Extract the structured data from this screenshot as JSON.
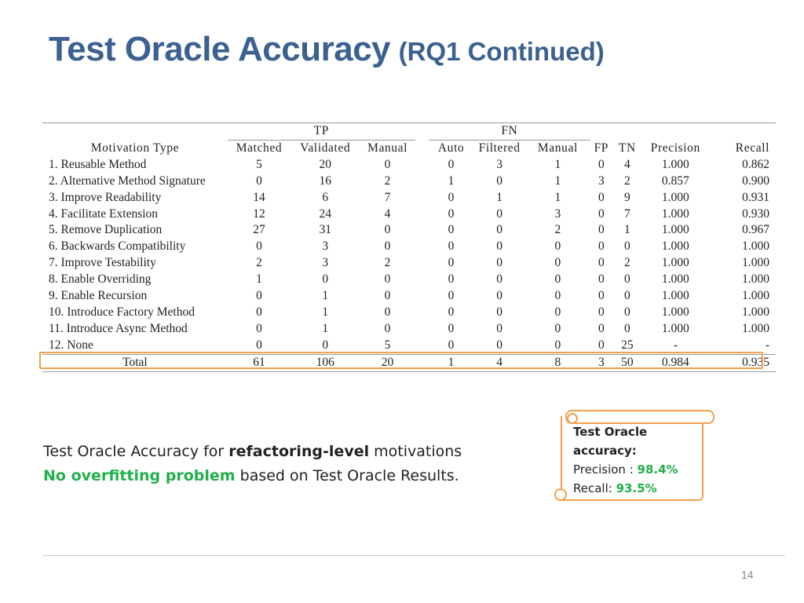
{
  "title": {
    "main": "Test Oracle Accuracy",
    "sub": "(RQ1 Continued)"
  },
  "table": {
    "group_tp": "TP",
    "group_fn": "FN",
    "headers": {
      "motivation": "Motivation Type",
      "matched": "Matched",
      "validated": "Validated",
      "manual_tp": "Manual",
      "auto": "Auto",
      "filtered": "Filtered",
      "manual_fn": "Manual",
      "fp": "FP",
      "tn": "TN",
      "precision": "Precision",
      "recall": "Recall"
    },
    "rows": [
      [
        "1. Reusable Method",
        "5",
        "20",
        "0",
        "0",
        "3",
        "1",
        "0",
        "4",
        "1.000",
        "0.862"
      ],
      [
        "2. Alternative Method Signature",
        "0",
        "16",
        "2",
        "1",
        "0",
        "1",
        "3",
        "2",
        "0.857",
        "0.900"
      ],
      [
        "3. Improve Readability",
        "14",
        "6",
        "7",
        "0",
        "1",
        "1",
        "0",
        "9",
        "1.000",
        "0.931"
      ],
      [
        "4. Facilitate Extension",
        "12",
        "24",
        "4",
        "0",
        "0",
        "3",
        "0",
        "7",
        "1.000",
        "0.930"
      ],
      [
        "5. Remove Duplication",
        "27",
        "31",
        "0",
        "0",
        "0",
        "2",
        "0",
        "1",
        "1.000",
        "0.967"
      ],
      [
        "6. Backwards Compatibility",
        "0",
        "3",
        "0",
        "0",
        "0",
        "0",
        "0",
        "0",
        "1.000",
        "1.000"
      ],
      [
        "7. Improve Testability",
        "2",
        "3",
        "2",
        "0",
        "0",
        "0",
        "0",
        "2",
        "1.000",
        "1.000"
      ],
      [
        "8. Enable Overriding",
        "1",
        "0",
        "0",
        "0",
        "0",
        "0",
        "0",
        "0",
        "1.000",
        "1.000"
      ],
      [
        "9. Enable Recursion",
        "0",
        "1",
        "0",
        "0",
        "0",
        "0",
        "0",
        "0",
        "1.000",
        "1.000"
      ],
      [
        "10. Introduce Factory Method",
        "0",
        "1",
        "0",
        "0",
        "0",
        "0",
        "0",
        "0",
        "1.000",
        "1.000"
      ],
      [
        "11. Introduce Async Method",
        "0",
        "1",
        "0",
        "0",
        "0",
        "0",
        "0",
        "0",
        "1.000",
        "1.000"
      ],
      [
        "12. None",
        "0",
        "0",
        "5",
        "0",
        "0",
        "0",
        "0",
        "25",
        "-",
        "-"
      ]
    ],
    "total": [
      "Total",
      "61",
      "106",
      "20",
      "1",
      "4",
      "8",
      "3",
      "50",
      "0.984",
      "0.935"
    ]
  },
  "caption": {
    "line1_pre": "Test Oracle Accuracy for ",
    "line1_bold": "refactoring-level",
    "line1_post": " motivations",
    "line2_green": "No overfitting problem",
    "line2_post": " based on Test Oracle Results."
  },
  "callout": {
    "heading_1": "Test Oracle",
    "heading_2": "accuracy:",
    "precision_label": "Precision : ",
    "precision_value": "98.4%",
    "recall_label": "Recall: ",
    "recall_value": "93.5%"
  },
  "colors": {
    "title": "#3A6190",
    "highlight": "#F0A050",
    "green": "#22B04B"
  },
  "page_number": "14"
}
